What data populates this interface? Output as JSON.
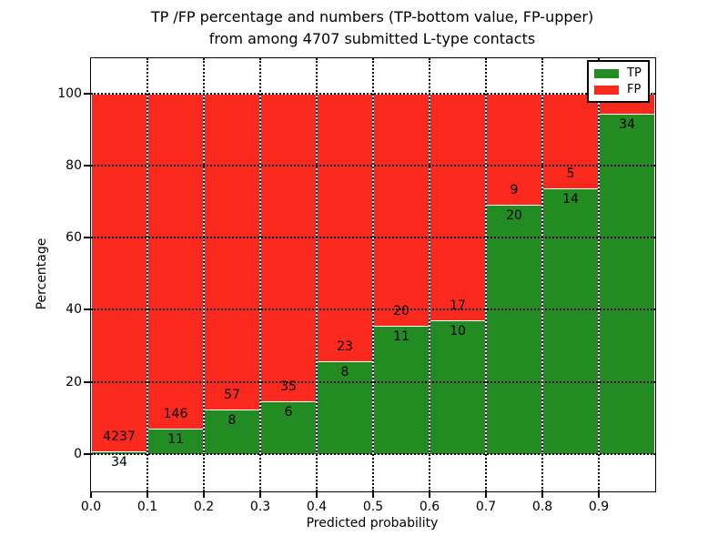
{
  "title": {
    "line1": "TP /FP percentage and numbers (TP-bottom value, FP-upper)",
    "line2": "from among 4707 submitted L-type contacts"
  },
  "axes": {
    "xlabel": "Predicted probability",
    "ylabel": "Percentage",
    "xticks": [
      "0.0",
      "0.1",
      "0.2",
      "0.3",
      "0.4",
      "0.5",
      "0.6",
      "0.7",
      "0.8",
      "0.9"
    ],
    "yticks": [
      "0",
      "20",
      "40",
      "60",
      "80",
      "100"
    ],
    "ytick_values": [
      0,
      20,
      40,
      60,
      80,
      100
    ]
  },
  "legend": {
    "items": [
      {
        "label": "TP",
        "color": "#228b22"
      },
      {
        "label": "FP",
        "color": "#fa291e"
      }
    ]
  },
  "colors": {
    "tp_green": "#228b22",
    "fp_red": "#fa291e",
    "grid": "#000000",
    "bar_edge": "#ffffff"
  },
  "chart_data": {
    "type": "bar",
    "stacked": true,
    "normalized": "each bin stacked to 100%",
    "title": "TP /FP percentage and numbers (TP-bottom value, FP-upper) from among 4707 submitted L-type contacts",
    "xlabel": "Predicted probability",
    "ylabel": "Percentage",
    "xlim": [
      0.0,
      1.0
    ],
    "ylim": [
      -10,
      110
    ],
    "grid": "dotted black, on",
    "legend_position": "upper right",
    "bin_edges": [
      0.0,
      0.1,
      0.2,
      0.3,
      0.4,
      0.5,
      0.6,
      0.7,
      0.8,
      0.9,
      1.0
    ],
    "series": [
      {
        "name": "TP",
        "color": "#228b22",
        "counts": [
          34,
          11,
          8,
          6,
          8,
          11,
          10,
          20,
          14,
          34
        ]
      },
      {
        "name": "FP",
        "color": "#fa291e",
        "counts": [
          4237,
          146,
          57,
          35,
          23,
          20,
          17,
          9,
          5,
          null
        ]
      }
    ],
    "bars": [
      {
        "bin": "0.0-0.1",
        "tp_label": "34",
        "fp_label": "4237",
        "tp_percent": 0.8
      },
      {
        "bin": "0.1-0.2",
        "tp_label": "11",
        "fp_label": "146",
        "tp_percent": 7.0
      },
      {
        "bin": "0.2-0.3",
        "tp_label": "8",
        "fp_label": "57",
        "tp_percent": 12.3
      },
      {
        "bin": "0.3-0.4",
        "tp_label": "6",
        "fp_label": "35",
        "tp_percent": 14.6
      },
      {
        "bin": "0.4-0.5",
        "tp_label": "8",
        "fp_label": "23",
        "tp_percent": 25.8
      },
      {
        "bin": "0.5-0.6",
        "tp_label": "11",
        "fp_label": "20",
        "tp_percent": 35.5
      },
      {
        "bin": "0.6-0.7",
        "tp_label": "10",
        "fp_label": "17",
        "tp_percent": 37.0
      },
      {
        "bin": "0.7-0.8",
        "tp_label": "20",
        "fp_label": "9",
        "tp_percent": 69.0
      },
      {
        "bin": "0.8-0.9",
        "tp_label": "14",
        "fp_label": "5",
        "tp_percent": 73.7
      },
      {
        "bin": "0.9-1.0",
        "tp_label": "34",
        "fp_label": "",
        "tp_percent": 94.4
      }
    ]
  }
}
